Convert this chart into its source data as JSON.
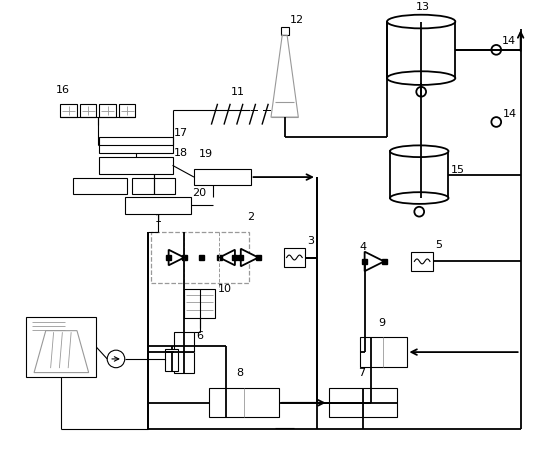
{
  "bg_color": "#ffffff",
  "lc": "#000000",
  "gc": "#999999",
  "lw": 1.3,
  "lw_thin": 0.8
}
